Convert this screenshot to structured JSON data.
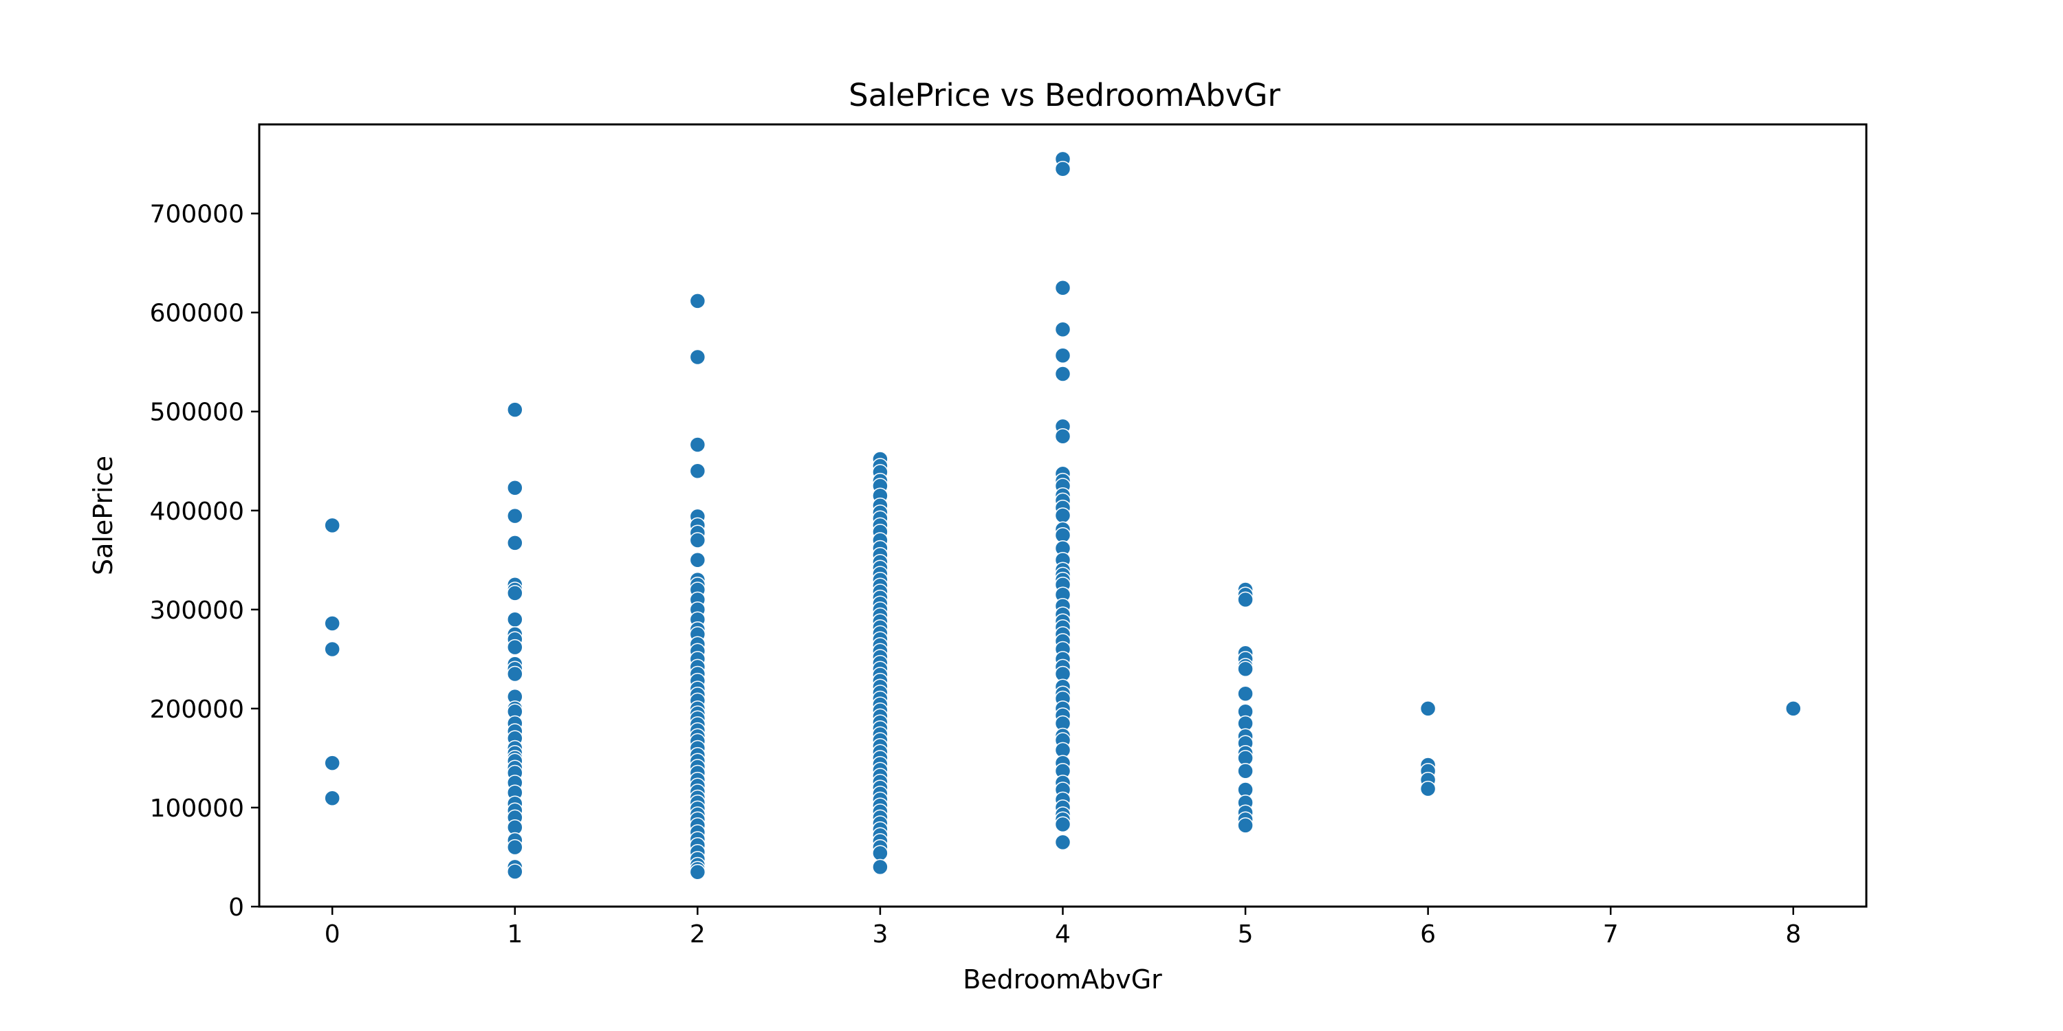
{
  "chart_data": {
    "type": "scatter",
    "title": "SalePrice vs BedroomAbvGr",
    "xlabel": "BedroomAbvGr",
    "ylabel": "SalePrice",
    "xlim": [
      -0.4,
      8.4
    ],
    "ylim": [
      0,
      790000
    ],
    "xticks": [
      "0",
      "1",
      "2",
      "3",
      "4",
      "5",
      "6",
      "7",
      "8"
    ],
    "yticks": [
      "0",
      "100000",
      "200000",
      "300000",
      "400000",
      "500000",
      "600000",
      "700000"
    ],
    "grid": false,
    "legend": "none",
    "marker_color": "#1f77b4",
    "marker_edge_color": "#ffffff",
    "points": [
      [
        0,
        385000
      ],
      [
        0,
        286000
      ],
      [
        0,
        260000
      ],
      [
        0,
        145000
      ],
      [
        0,
        109500
      ],
      [
        1,
        501837
      ],
      [
        1,
        423000
      ],
      [
        1,
        394617
      ],
      [
        1,
        367294
      ],
      [
        1,
        325000
      ],
      [
        1,
        320000
      ],
      [
        1,
        316600
      ],
      [
        1,
        290000
      ],
      [
        1,
        275000
      ],
      [
        1,
        270000
      ],
      [
        1,
        262000
      ],
      [
        1,
        245000
      ],
      [
        1,
        240000
      ],
      [
        1,
        235000
      ],
      [
        1,
        212000
      ],
      [
        1,
        200000
      ],
      [
        1,
        197000
      ],
      [
        1,
        185000
      ],
      [
        1,
        177000
      ],
      [
        1,
        170000
      ],
      [
        1,
        160000
      ],
      [
        1,
        155000
      ],
      [
        1,
        150000
      ],
      [
        1,
        147000
      ],
      [
        1,
        140000
      ],
      [
        1,
        135000
      ],
      [
        1,
        125000
      ],
      [
        1,
        115000
      ],
      [
        1,
        104000
      ],
      [
        1,
        97000
      ],
      [
        1,
        90000
      ],
      [
        1,
        80000
      ],
      [
        1,
        67000
      ],
      [
        1,
        60000
      ],
      [
        1,
        40000
      ],
      [
        1,
        35311
      ],
      [
        2,
        611657
      ],
      [
        2,
        555000
      ],
      [
        2,
        466500
      ],
      [
        2,
        440000
      ],
      [
        2,
        394000
      ],
      [
        2,
        385000
      ],
      [
        2,
        377500
      ],
      [
        2,
        370000
      ],
      [
        2,
        350000
      ],
      [
        2,
        330000
      ],
      [
        2,
        325000
      ],
      [
        2,
        320000
      ],
      [
        2,
        310000
      ],
      [
        2,
        300000
      ],
      [
        2,
        290000
      ],
      [
        2,
        280000
      ],
      [
        2,
        275000
      ],
      [
        2,
        265000
      ],
      [
        2,
        258000
      ],
      [
        2,
        250000
      ],
      [
        2,
        242000
      ],
      [
        2,
        235000
      ],
      [
        2,
        228000
      ],
      [
        2,
        220000
      ],
      [
        2,
        214000
      ],
      [
        2,
        208000
      ],
      [
        2,
        200000
      ],
      [
        2,
        195000
      ],
      [
        2,
        190000
      ],
      [
        2,
        184000
      ],
      [
        2,
        178000
      ],
      [
        2,
        172000
      ],
      [
        2,
        167000
      ],
      [
        2,
        160000
      ],
      [
        2,
        153000
      ],
      [
        2,
        147000
      ],
      [
        2,
        141000
      ],
      [
        2,
        135000
      ],
      [
        2,
        128000
      ],
      [
        2,
        122000
      ],
      [
        2,
        116000
      ],
      [
        2,
        110000
      ],
      [
        2,
        105000
      ],
      [
        2,
        99000
      ],
      [
        2,
        93000
      ],
      [
        2,
        88000
      ],
      [
        2,
        82000
      ],
      [
        2,
        75000
      ],
      [
        2,
        68000
      ],
      [
        2,
        62000
      ],
      [
        2,
        55000
      ],
      [
        2,
        48000
      ],
      [
        2,
        42000
      ],
      [
        2,
        37900
      ],
      [
        2,
        34900
      ],
      [
        3,
        451950
      ],
      [
        3,
        445000
      ],
      [
        3,
        438780
      ],
      [
        3,
        430000
      ],
      [
        3,
        424870
      ],
      [
        3,
        415000
      ],
      [
        3,
        405000
      ],
      [
        3,
        398000
      ],
      [
        3,
        392000
      ],
      [
        3,
        385000
      ],
      [
        3,
        378500
      ],
      [
        3,
        370000
      ],
      [
        3,
        362000
      ],
      [
        3,
        355000
      ],
      [
        3,
        348000
      ],
      [
        3,
        342000
      ],
      [
        3,
        336000
      ],
      [
        3,
        330000
      ],
      [
        3,
        324000
      ],
      [
        3,
        318000
      ],
      [
        3,
        312000
      ],
      [
        3,
        306000
      ],
      [
        3,
        300000
      ],
      [
        3,
        294000
      ],
      [
        3,
        288000
      ],
      [
        3,
        282000
      ],
      [
        3,
        276000
      ],
      [
        3,
        270000
      ],
      [
        3,
        264000
      ],
      [
        3,
        258000
      ],
      [
        3,
        252000
      ],
      [
        3,
        246000
      ],
      [
        3,
        240000
      ],
      [
        3,
        234000
      ],
      [
        3,
        228000
      ],
      [
        3,
        222000
      ],
      [
        3,
        216000
      ],
      [
        3,
        210000
      ],
      [
        3,
        204000
      ],
      [
        3,
        198000
      ],
      [
        3,
        192000
      ],
      [
        3,
        186000
      ],
      [
        3,
        180000
      ],
      [
        3,
        174000
      ],
      [
        3,
        168000
      ],
      [
        3,
        162000
      ],
      [
        3,
        156000
      ],
      [
        3,
        150000
      ],
      [
        3,
        144000
      ],
      [
        3,
        138000
      ],
      [
        3,
        132000
      ],
      [
        3,
        126000
      ],
      [
        3,
        120000
      ],
      [
        3,
        114000
      ],
      [
        3,
        108000
      ],
      [
        3,
        102000
      ],
      [
        3,
        96000
      ],
      [
        3,
        90000
      ],
      [
        3,
        84000
      ],
      [
        3,
        78000
      ],
      [
        3,
        72000
      ],
      [
        3,
        66000
      ],
      [
        3,
        60000
      ],
      [
        3,
        54000
      ],
      [
        3,
        40000
      ],
      [
        4,
        755000
      ],
      [
        4,
        745000
      ],
      [
        4,
        625000
      ],
      [
        4,
        582933
      ],
      [
        4,
        556581
      ],
      [
        4,
        538000
      ],
      [
        4,
        485000
      ],
      [
        4,
        475000
      ],
      [
        4,
        437154
      ],
      [
        4,
        430000
      ],
      [
        4,
        424870
      ],
      [
        4,
        415298
      ],
      [
        4,
        410000
      ],
      [
        4,
        402861
      ],
      [
        4,
        395000
      ],
      [
        4,
        381000
      ],
      [
        4,
        375000
      ],
      [
        4,
        361919
      ],
      [
        4,
        350000
      ],
      [
        4,
        340000
      ],
      [
        4,
        335000
      ],
      [
        4,
        330000
      ],
      [
        4,
        325000
      ],
      [
        4,
        315000
      ],
      [
        4,
        303477
      ],
      [
        4,
        295000
      ],
      [
        4,
        288000
      ],
      [
        4,
        282000
      ],
      [
        4,
        275000
      ],
      [
        4,
        268000
      ],
      [
        4,
        260000
      ],
      [
        4,
        250000
      ],
      [
        4,
        242000
      ],
      [
        4,
        235000
      ],
      [
        4,
        222000
      ],
      [
        4,
        215000
      ],
      [
        4,
        210000
      ],
      [
        4,
        200000
      ],
      [
        4,
        193000
      ],
      [
        4,
        185000
      ],
      [
        4,
        172500
      ],
      [
        4,
        168000
      ],
      [
        4,
        158000
      ],
      [
        4,
        145000
      ],
      [
        4,
        137000
      ],
      [
        4,
        125000
      ],
      [
        4,
        118000
      ],
      [
        4,
        108000
      ],
      [
        4,
        100000
      ],
      [
        4,
        93000
      ],
      [
        4,
        88000
      ],
      [
        4,
        83000
      ],
      [
        4,
        65000
      ],
      [
        5,
        320000
      ],
      [
        5,
        315000
      ],
      [
        5,
        310000
      ],
      [
        5,
        256000
      ],
      [
        5,
        250000
      ],
      [
        5,
        243000
      ],
      [
        5,
        240000
      ],
      [
        5,
        215000
      ],
      [
        5,
        197000
      ],
      [
        5,
        185000
      ],
      [
        5,
        172000
      ],
      [
        5,
        165000
      ],
      [
        5,
        155000
      ],
      [
        5,
        150000
      ],
      [
        5,
        137000
      ],
      [
        5,
        118000
      ],
      [
        5,
        105000
      ],
      [
        5,
        95000
      ],
      [
        5,
        88000
      ],
      [
        5,
        82000
      ],
      [
        6,
        200000
      ],
      [
        6,
        143000
      ],
      [
        6,
        137000
      ],
      [
        6,
        128000
      ],
      [
        6,
        119000
      ],
      [
        8,
        200000
      ]
    ]
  }
}
